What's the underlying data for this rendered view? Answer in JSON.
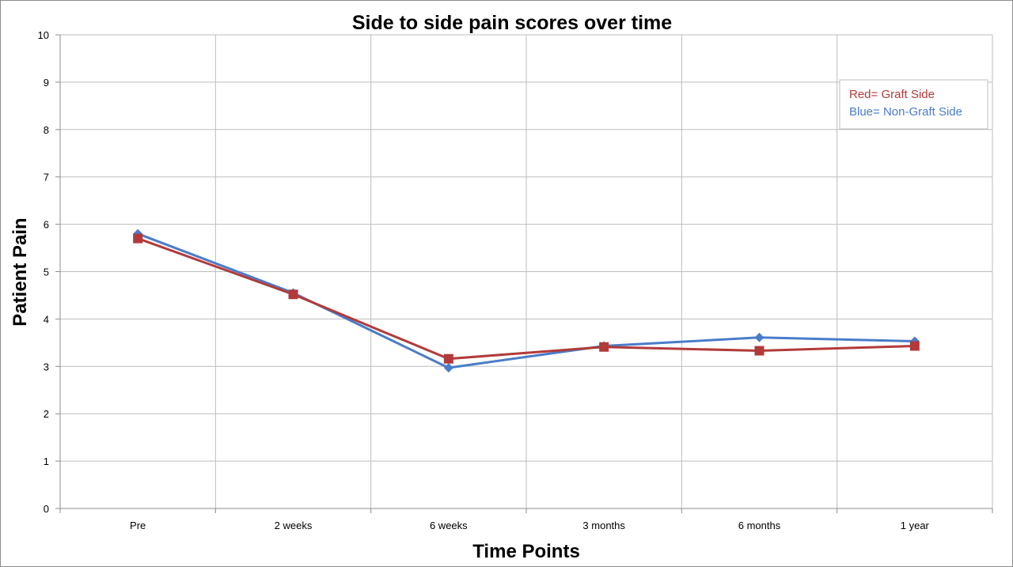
{
  "chart_data": {
    "type": "line",
    "title": "Side to side pain scores over time",
    "xlabel": "Time Points",
    "ylabel": "Patient Pain",
    "categories": [
      "Pre",
      "2 weeks",
      "6 weeks",
      "3 months",
      "6 months",
      "1 year"
    ],
    "ylim": [
      0,
      10
    ],
    "yticks": [
      "0",
      "1",
      "2",
      "3",
      "4",
      "5",
      "6",
      "7",
      "8",
      "9",
      "10"
    ],
    "grid": true,
    "legend": {
      "placement": "top-right",
      "entries": [
        {
          "text": "Red= Graft Side",
          "color": "#b23a3a"
        },
        {
          "text": "Blue= Non-Graft Side",
          "color": "#4a7cc9"
        }
      ]
    },
    "series": [
      {
        "color": "#4a7cc9",
        "marker": "diamond",
        "values": [
          5.8,
          4.55,
          2.97,
          3.43,
          3.61,
          3.53
        ]
      },
      {
        "color": "#b23a3a",
        "marker": "square",
        "values": [
          5.7,
          4.52,
          3.16,
          3.41,
          3.33,
          3.43
        ]
      }
    ]
  }
}
